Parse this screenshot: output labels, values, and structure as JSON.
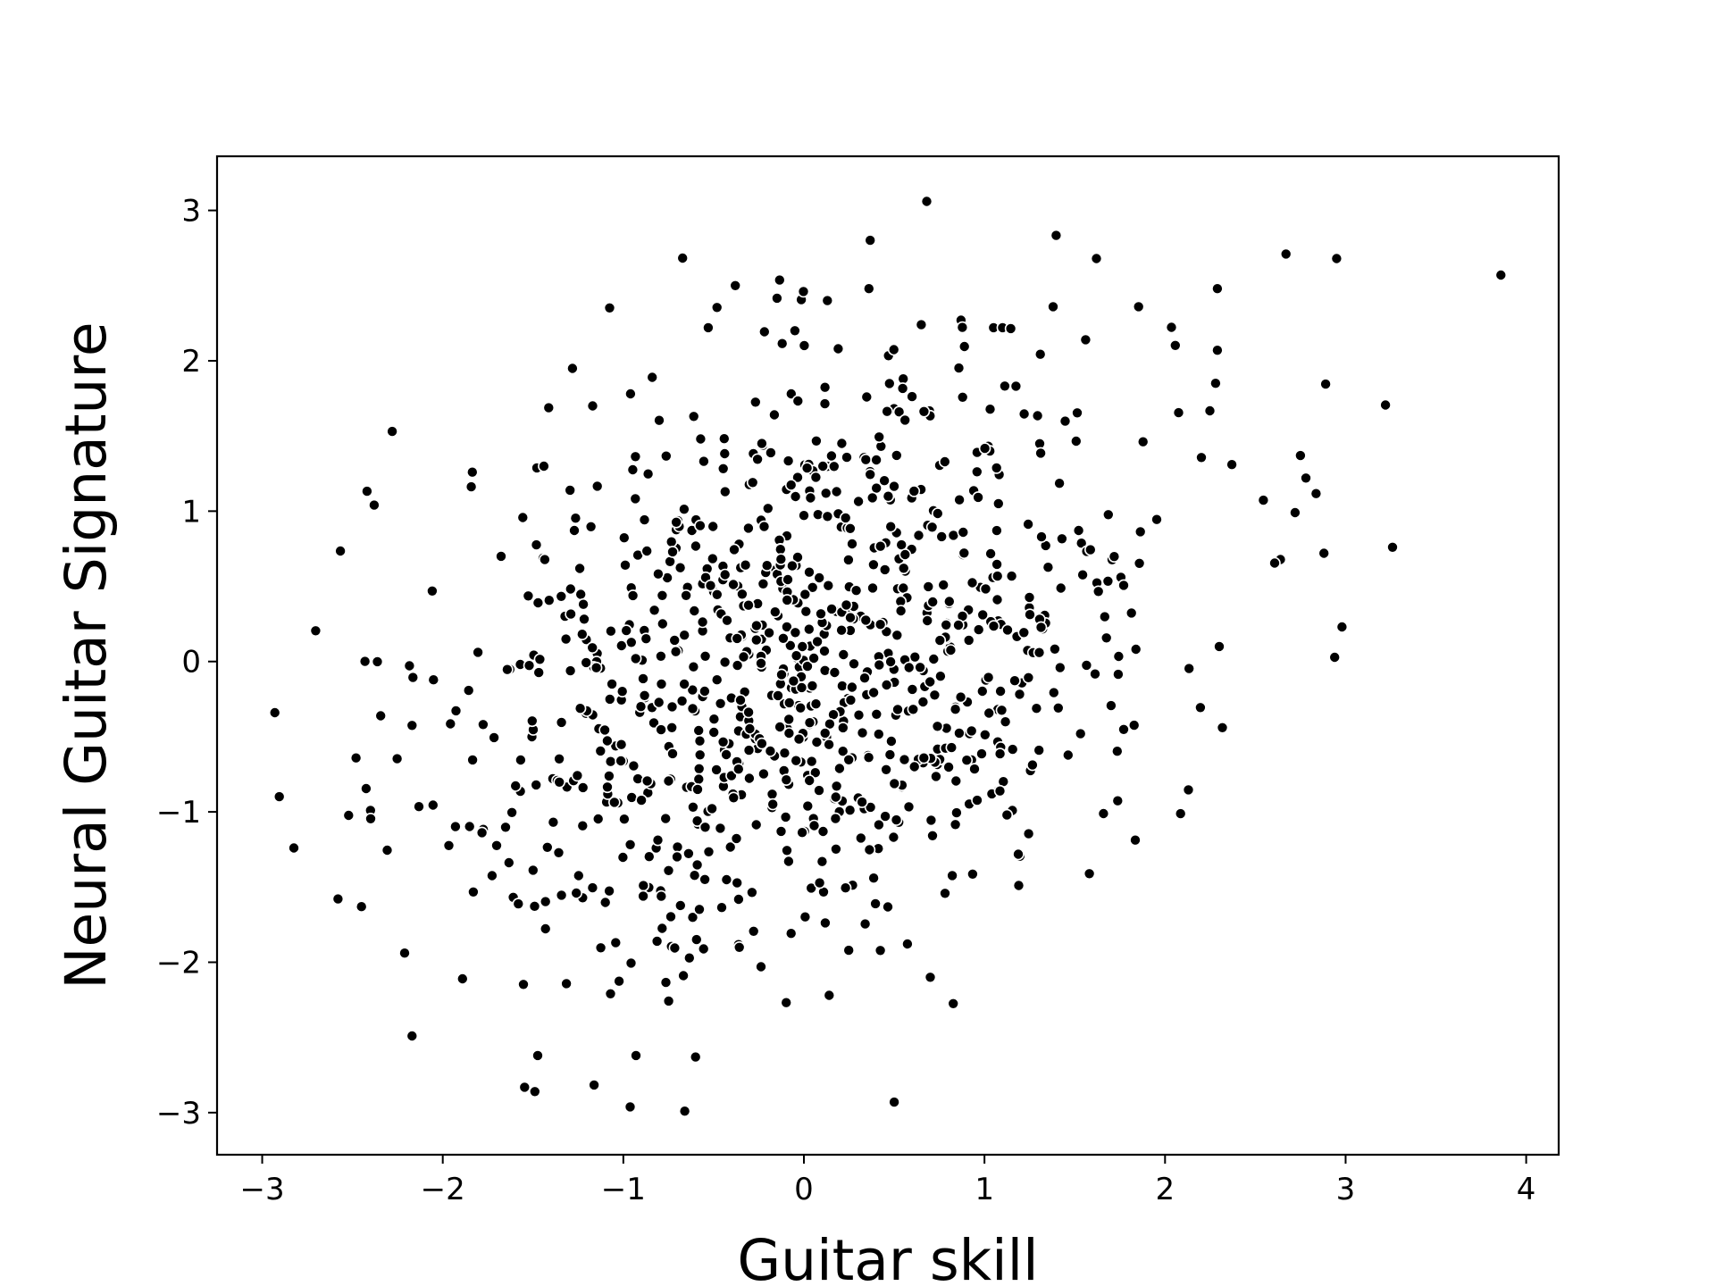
{
  "chart_data": {
    "type": "scatter",
    "title": "",
    "xlabel": "Guitar skill",
    "ylabel": "Neural Guitar Signature",
    "xlim": [
      -3.25,
      4.18
    ],
    "ylim": [
      -3.28,
      3.36
    ],
    "xticks": [
      -3,
      -2,
      -1,
      0,
      1,
      2,
      3,
      4
    ],
    "xtick_labels": [
      "−3",
      "−2",
      "−1",
      "0",
      "1",
      "2",
      "3",
      "4"
    ],
    "yticks": [
      -3,
      -2,
      -1,
      0,
      1,
      2,
      3
    ],
    "ytick_labels": [
      "−3",
      "−2",
      "−1",
      "0",
      "1",
      "2",
      "3"
    ],
    "grid": false,
    "legend": "none",
    "marker_color": "#000000",
    "marker_edge": "#ffffff",
    "n_points": 1000,
    "correlation": 0.3,
    "points": [
      [
        0.68,
        3.06
      ],
      [
        -0.38,
        2.5
      ],
      [
        0.13,
        2.4
      ],
      [
        0.36,
        2.48
      ],
      [
        -0.53,
        2.22
      ],
      [
        -0.05,
        2.2
      ],
      [
        0.65,
        2.24
      ],
      [
        0.87,
        2.27
      ],
      [
        1.05,
        2.22
      ],
      [
        1.62,
        2.68
      ],
      [
        2.67,
        2.71
      ],
      [
        2.95,
        2.68
      ],
      [
        3.86,
        2.57
      ],
      [
        2.29,
        2.48
      ],
      [
        1.38,
        2.36
      ],
      [
        1.1,
        2.22
      ],
      [
        -2.28,
        1.53
      ],
      [
        -2.38,
        1.04
      ],
      [
        -2.7,
        0.21
      ],
      [
        -2.93,
        -0.34
      ],
      [
        -2.4,
        -0.99
      ],
      [
        -2.45,
        -1.63
      ],
      [
        -2.17,
        -2.49
      ],
      [
        -1.49,
        -2.86
      ],
      [
        -0.66,
        -2.99
      ],
      [
        0.5,
        -2.93
      ],
      [
        -0.93,
        -2.62
      ],
      [
        -0.6,
        -2.63
      ],
      [
        0.7,
        -2.1
      ],
      [
        0.14,
        -2.22
      ],
      [
        2.28,
        1.85
      ],
      [
        2.29,
        2.07
      ],
      [
        0.19,
        2.08
      ],
      [
        1.56,
        2.14
      ],
      [
        3.26,
        0.76
      ],
      [
        2.98,
        0.23
      ],
      [
        2.88,
        0.72
      ],
      [
        2.75,
        1.37
      ],
      [
        2.78,
        1.22
      ],
      [
        2.72,
        0.99
      ],
      [
        2.37,
        1.31
      ],
      [
        2.3,
        0.1
      ],
      [
        -0.96,
        1.78
      ],
      [
        -0.84,
        1.89
      ],
      [
        -1.17,
        1.7
      ],
      [
        -0.61,
        1.63
      ],
      [
        0.55,
        1.88
      ],
      [
        -0.07,
        1.78
      ]
    ]
  }
}
